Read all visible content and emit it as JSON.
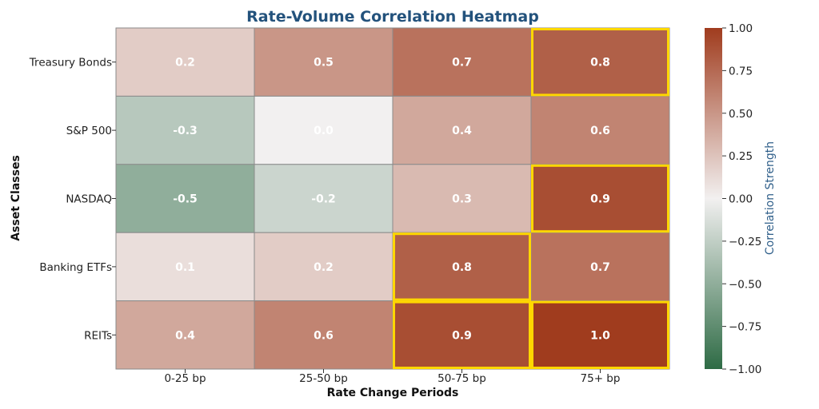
{
  "chart_data": {
    "type": "heatmap",
    "title": "Rate-Volume Correlation Heatmap",
    "xlabel": "Rate Change Periods",
    "ylabel": "Asset Classes",
    "x_categories": [
      "0-25 bp",
      "25-50 bp",
      "50-75 bp",
      "75+ bp"
    ],
    "y_categories": [
      "Treasury Bonds",
      "S&P 500",
      "NASDAQ",
      "Banking ETFs",
      "REITs"
    ],
    "values": [
      [
        0.2,
        0.5,
        0.7,
        0.8
      ],
      [
        -0.3,
        0.0,
        0.4,
        0.6
      ],
      [
        -0.5,
        -0.2,
        0.3,
        0.9
      ],
      [
        0.1,
        0.2,
        0.8,
        0.7
      ],
      [
        0.4,
        0.6,
        0.9,
        1.0
      ]
    ],
    "value_labels": [
      [
        "0.2",
        "0.5",
        "0.7",
        "0.8"
      ],
      [
        "-0.3",
        "0.0",
        "0.4",
        "0.6"
      ],
      [
        "-0.5",
        "-0.2",
        "0.3",
        "0.9"
      ],
      [
        "0.1",
        "0.2",
        "0.8",
        "0.7"
      ],
      [
        "0.4",
        "0.6",
        "0.9",
        "1.0"
      ]
    ],
    "highlight_threshold": 0.8,
    "highlight_color": "#ffd700",
    "colorbar": {
      "label": "Correlation Strength",
      "range": [
        -1.0,
        1.0
      ],
      "ticks": [
        1.0,
        0.75,
        0.5,
        0.25,
        0.0,
        -0.25,
        -0.5,
        -0.75,
        -1.0
      ],
      "tick_labels": [
        "1.00",
        "0.75",
        "0.50",
        "0.25",
        "0.00",
        "−0.25",
        "−0.50",
        "−0.75",
        "−1.00"
      ],
      "color_negative": "#2e6b45",
      "color_mid": "#f2f0f0",
      "color_positive": "#a03c1e"
    }
  }
}
